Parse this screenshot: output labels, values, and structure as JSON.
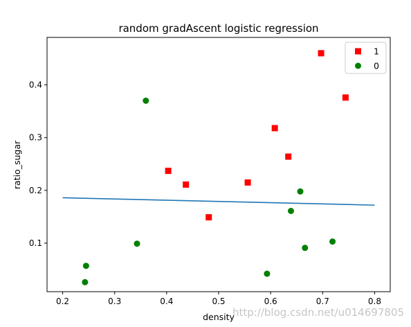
{
  "chart_data": {
    "type": "scatter",
    "title": "random gradAscent logistic regression",
    "xlabel": "density",
    "ylabel": "ratio_sugar",
    "xlim": [
      0.17,
      0.83
    ],
    "ylim": [
      0.008,
      0.49
    ],
    "xticks": [
      0.2,
      0.3,
      0.4,
      0.5,
      0.6,
      0.7,
      0.8
    ],
    "xtick_labels": [
      "0.2",
      "0.3",
      "0.4",
      "0.5",
      "0.6",
      "0.7",
      "0.8"
    ],
    "yticks": [
      0.1,
      0.2,
      0.3,
      0.4
    ],
    "ytick_labels": [
      "0.1",
      "0.2",
      "0.3",
      "0.4"
    ],
    "grid": false,
    "legend_position": "top-right",
    "series": [
      {
        "name": "1",
        "marker": "square",
        "color": "#ff0000",
        "points": [
          [
            0.697,
            0.46
          ],
          [
            0.744,
            0.376
          ],
          [
            0.608,
            0.318
          ],
          [
            0.634,
            0.264
          ],
          [
            0.403,
            0.237
          ],
          [
            0.437,
            0.211
          ],
          [
            0.556,
            0.215
          ],
          [
            0.481,
            0.149
          ]
        ]
      },
      {
        "name": "0",
        "marker": "circle",
        "color": "#008000",
        "points": [
          [
            0.36,
            0.37
          ],
          [
            0.657,
            0.198
          ],
          [
            0.639,
            0.161
          ],
          [
            0.343,
            0.099
          ],
          [
            0.719,
            0.103
          ],
          [
            0.666,
            0.091
          ],
          [
            0.245,
            0.057
          ],
          [
            0.243,
            0.026
          ],
          [
            0.593,
            0.042
          ]
        ]
      }
    ],
    "decision_line": {
      "color": "#1f77b4",
      "x": [
        0.2,
        0.8
      ],
      "y": [
        0.186,
        0.172
      ]
    }
  },
  "watermark": "http://blog.csdn.net/u014697805"
}
